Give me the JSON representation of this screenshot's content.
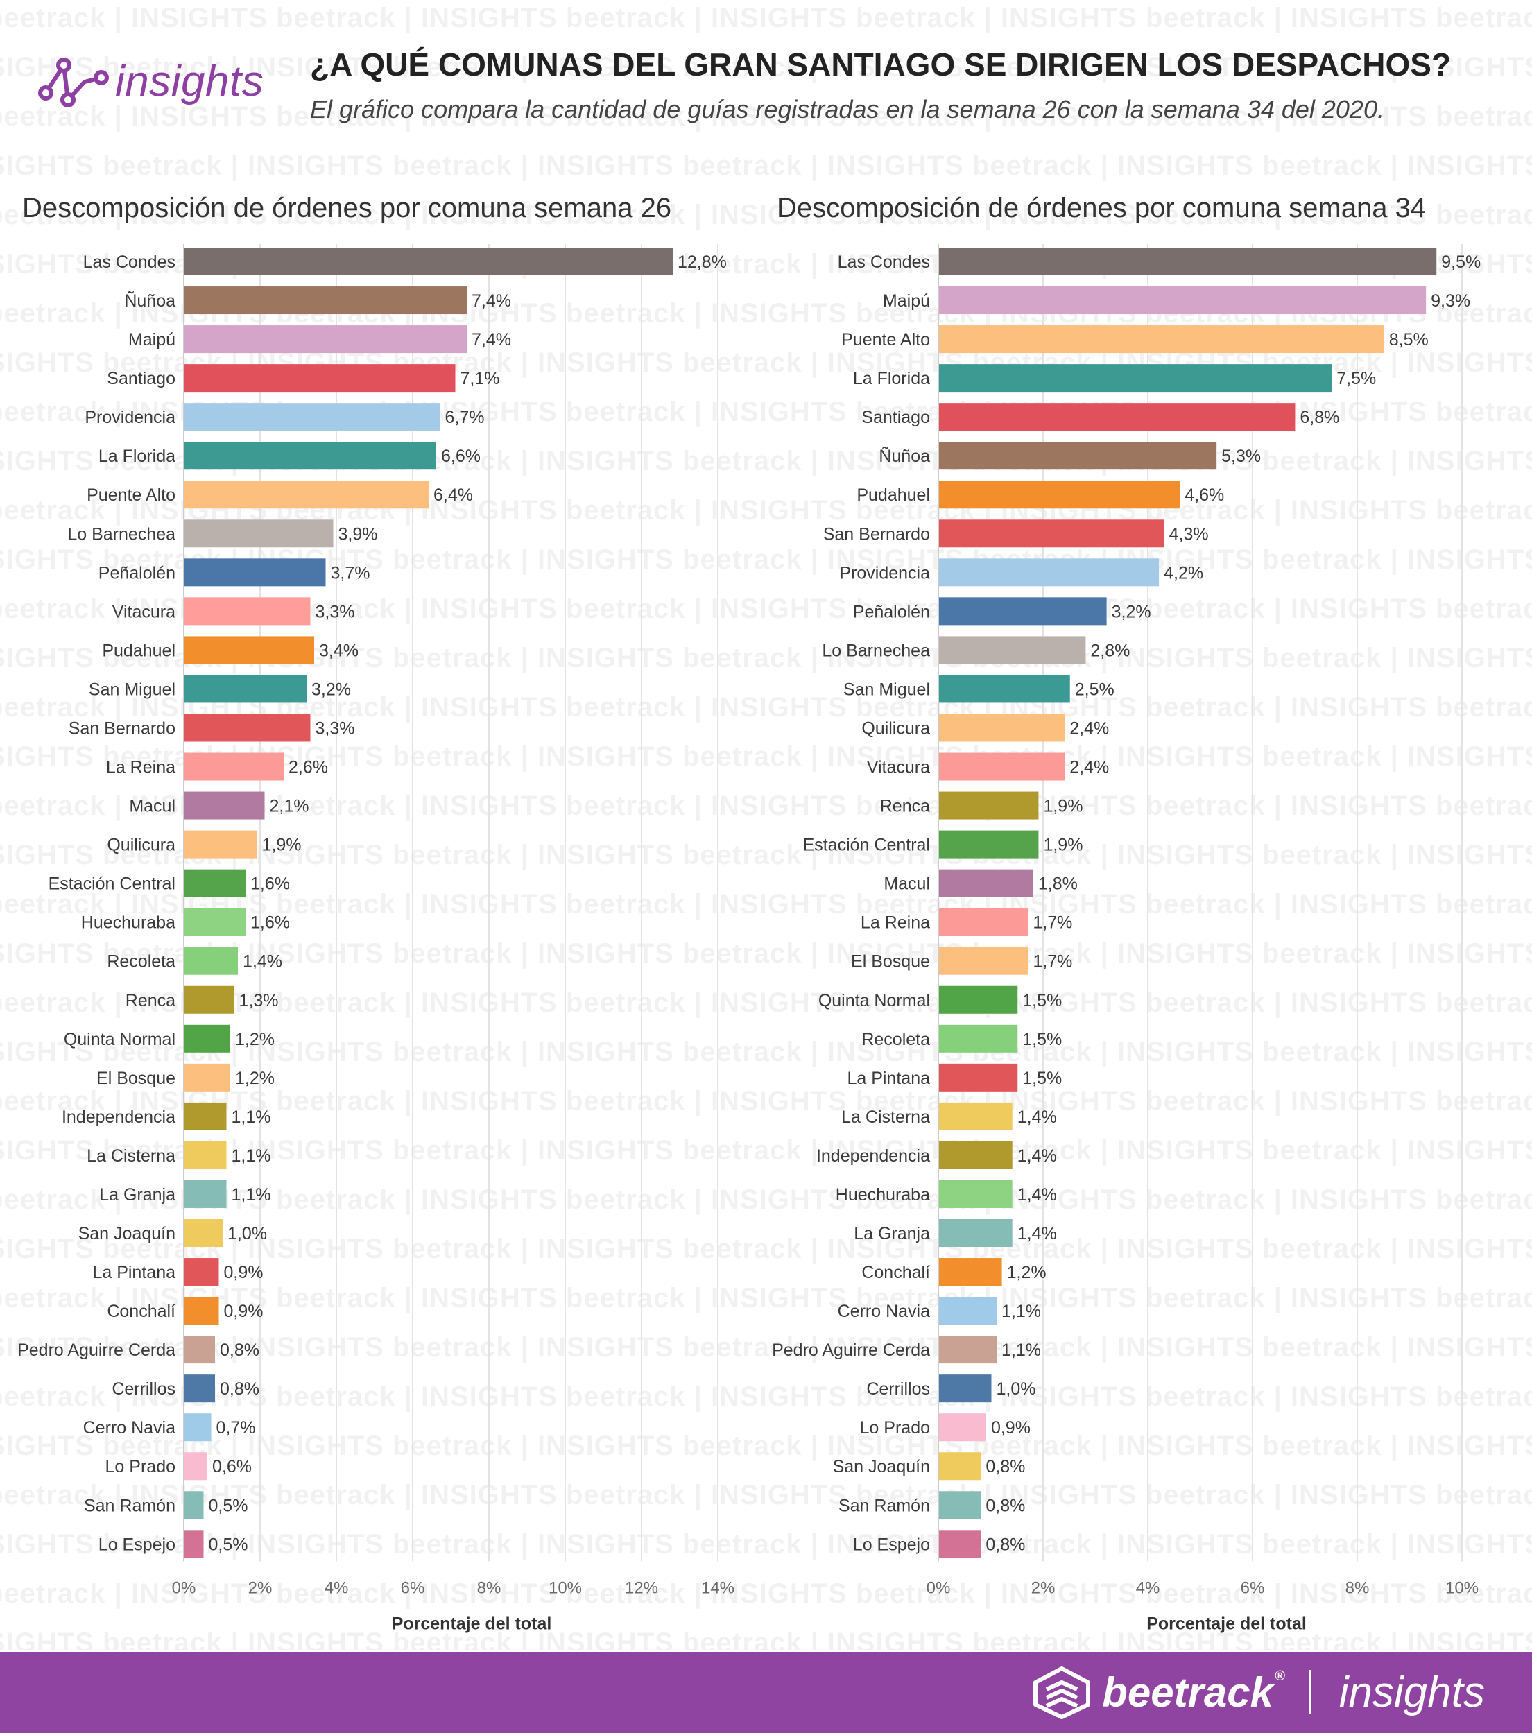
{
  "header": {
    "logo_text": "insights",
    "title": "¿A QUÉ COMUNAS DEL GRAN SANTIAGO SE DIRIGEN LOS DESPACHOS?",
    "subtitle": "El gráfico compara la cantidad de guías registradas en la semana 26 con la semana 34 del 2020."
  },
  "watermark": {
    "brand": "beetrack",
    "tag": "INSIGHTS"
  },
  "footer": {
    "brand": "beetrack",
    "reg": "®",
    "product": "insights"
  },
  "colors": {
    "brand_purple": "#8f44a1",
    "grid": "#e3e3e3",
    "axis": "#cccccc",
    "text": "#3a3a3a"
  },
  "chart_data": [
    {
      "type": "bar",
      "orientation": "horizontal",
      "title": "Descomposición de órdenes por comuna semana 26",
      "xlabel": "Porcentaje del total",
      "ylabel": "",
      "xlim": [
        0,
        14
      ],
      "xticks": [
        0,
        2,
        4,
        6,
        8,
        10,
        12,
        14
      ],
      "xtick_labels": [
        "0%",
        "2%",
        "4%",
        "6%",
        "8%",
        "10%",
        "12%",
        "14%"
      ],
      "grid": true,
      "categories": [
        "Las Condes",
        "Ñuñoa",
        "Maipú",
        "Santiago",
        "Providencia",
        "La Florida",
        "Puente Alto",
        "Lo Barnechea",
        "Peñalolén",
        "Vitacura",
        "Pudahuel",
        "San Miguel",
        "San Bernardo",
        "La Reina",
        "Macul",
        "Quilicura",
        "Estación Central",
        "Huechuraba",
        "Recoleta",
        "Renca",
        "Quinta Normal",
        "El Bosque",
        "Independencia",
        "La Cisterna",
        "La Granja",
        "San Joaquín",
        "La Pintana",
        "Conchalí",
        "Pedro Aguirre Cerda",
        "Cerrillos",
        "Cerro Navia",
        "Lo Prado",
        "San Ramón",
        "Lo Espejo"
      ],
      "values": [
        12.8,
        7.4,
        7.4,
        7.1,
        6.7,
        6.6,
        6.4,
        3.9,
        3.7,
        3.3,
        3.4,
        3.2,
        3.3,
        2.6,
        2.1,
        1.9,
        1.6,
        1.6,
        1.4,
        1.3,
        1.2,
        1.2,
        1.1,
        1.1,
        1.1,
        1.0,
        0.9,
        0.9,
        0.8,
        0.8,
        0.7,
        0.6,
        0.5,
        0.5
      ],
      "value_labels": [
        "12,8%",
        "7,4%",
        "7,4%",
        "7,1%",
        "6,7%",
        "6,6%",
        "6,4%",
        "3,9%",
        "3,7%",
        "3,3%",
        "3,4%",
        "3,2%",
        "3,3%",
        "2,6%",
        "2,1%",
        "1,9%",
        "1,6%",
        "1,6%",
        "1,4%",
        "1,3%",
        "1,2%",
        "1,2%",
        "1,1%",
        "1,1%",
        "1,1%",
        "1,0%",
        "0,9%",
        "0,9%",
        "0,8%",
        "0,8%",
        "0,7%",
        "0,6%",
        "0,5%",
        "0,5%"
      ],
      "colors": [
        "#7a6e6c",
        "#9d7660",
        "#d4a5c8",
        "#e0515c",
        "#a3cbe8",
        "#3c9a93",
        "#fdbf7e",
        "#bab0ac",
        "#4a76a8",
        "#ff9d9a",
        "#f28e2b",
        "#3b9a94",
        "#e15759",
        "#fb9a97",
        "#b07aa1",
        "#fdbf7e",
        "#55a34b",
        "#8dd382",
        "#86d07c",
        "#b09a2e",
        "#51a546",
        "#fdbf7e",
        "#b09a2e",
        "#efcb5d",
        "#86bcb6",
        "#efcb5d",
        "#e15759",
        "#f28e2b",
        "#c9a294",
        "#4e79a7",
        "#a0cbe8",
        "#f8bbd0",
        "#86bcb6",
        "#d37295"
      ]
    },
    {
      "type": "bar",
      "orientation": "horizontal",
      "title": "Descomposición de órdenes por comuna semana 34",
      "xlabel": "Porcentaje del total",
      "ylabel": "",
      "xlim": [
        0,
        10
      ],
      "xticks": [
        0,
        2,
        4,
        6,
        8,
        10
      ],
      "xtick_labels": [
        "0%",
        "2%",
        "4%",
        "6%",
        "8%",
        "10%"
      ],
      "grid": true,
      "categories": [
        "Las Condes",
        "Maipú",
        "Puente Alto",
        "La Florida",
        "Santiago",
        "Ñuñoa",
        "Pudahuel",
        "San Bernardo",
        "Providencia",
        "Peñalolén",
        "Lo Barnechea",
        "San Miguel",
        "Quilicura",
        "Vitacura",
        "Renca",
        "Estación Central",
        "Macul",
        "La Reina",
        "El Bosque",
        "Quinta Normal",
        "Recoleta",
        "La Pintana",
        "La Cisterna",
        "Independencia",
        "Huechuraba",
        "La Granja",
        "Conchalí",
        "Cerro Navia",
        "Pedro Aguirre Cerda",
        "Cerrillos",
        "Lo Prado",
        "San Joaquín",
        "San Ramón",
        "Lo Espejo"
      ],
      "values": [
        9.5,
        9.3,
        8.5,
        7.5,
        6.8,
        5.3,
        4.6,
        4.3,
        4.2,
        3.2,
        2.8,
        2.5,
        2.4,
        2.4,
        1.9,
        1.9,
        1.8,
        1.7,
        1.7,
        1.5,
        1.5,
        1.5,
        1.4,
        1.4,
        1.4,
        1.4,
        1.2,
        1.1,
        1.1,
        1.0,
        0.9,
        0.8,
        0.8,
        0.8
      ],
      "value_labels": [
        "9,5%",
        "9,3%",
        "8,5%",
        "7,5%",
        "6,8%",
        "5,3%",
        "4,6%",
        "4,3%",
        "4,2%",
        "3,2%",
        "2,8%",
        "2,5%",
        "2,4%",
        "2,4%",
        "1,9%",
        "1,9%",
        "1,8%",
        "1,7%",
        "1,7%",
        "1,5%",
        "1,5%",
        "1,5%",
        "1,4%",
        "1,4%",
        "1,4%",
        "1,4%",
        "1,2%",
        "1,1%",
        "1,1%",
        "1,0%",
        "0,9%",
        "0,8%",
        "0,8%",
        "0,8%"
      ],
      "colors": [
        "#7a6e6c",
        "#d4a5c8",
        "#fdbf7e",
        "#3c9a93",
        "#e0515c",
        "#9d7660",
        "#f28e2b",
        "#e15759",
        "#a3cbe8",
        "#4a76a8",
        "#bab0ac",
        "#3b9a94",
        "#fdbf7e",
        "#fb9a97",
        "#b09a2e",
        "#55a34b",
        "#b07aa1",
        "#fb9a97",
        "#fdbf7e",
        "#51a546",
        "#86d07c",
        "#e15759",
        "#efcb5d",
        "#b09a2e",
        "#8dd382",
        "#86bcb6",
        "#f28e2b",
        "#a0cbe8",
        "#c9a294",
        "#4e79a7",
        "#f8bbd0",
        "#efcb5d",
        "#86bcb6",
        "#d37295"
      ]
    }
  ]
}
